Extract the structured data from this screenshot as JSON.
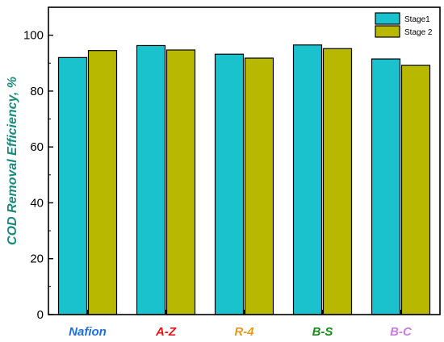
{
  "chart_data": {
    "type": "bar",
    "categories": [
      "Nafion",
      "A-Z",
      "R-4",
      "B-S",
      "B-C"
    ],
    "category_colors": [
      "#1e6fd9",
      "#e8141c",
      "#e39a1c",
      "#1a8a1a",
      "#c77ee0"
    ],
    "series": [
      {
        "name": "Stage1",
        "color": "#19c2cc",
        "values": [
          92.0,
          96.3,
          93.2,
          96.5,
          91.5
        ]
      },
      {
        "name": "Stage 2",
        "color": "#b8b800",
        "values": [
          94.5,
          94.7,
          91.8,
          95.2,
          89.2
        ]
      }
    ],
    "xlabel": "",
    "ylabel": "COD Removal Efficiency, %",
    "ylabel_color": "#1a8a7a",
    "ylim": [
      0,
      110
    ],
    "yticks": [
      0,
      20,
      40,
      60,
      80,
      100
    ],
    "grid": false,
    "legend_position": "top-right"
  }
}
